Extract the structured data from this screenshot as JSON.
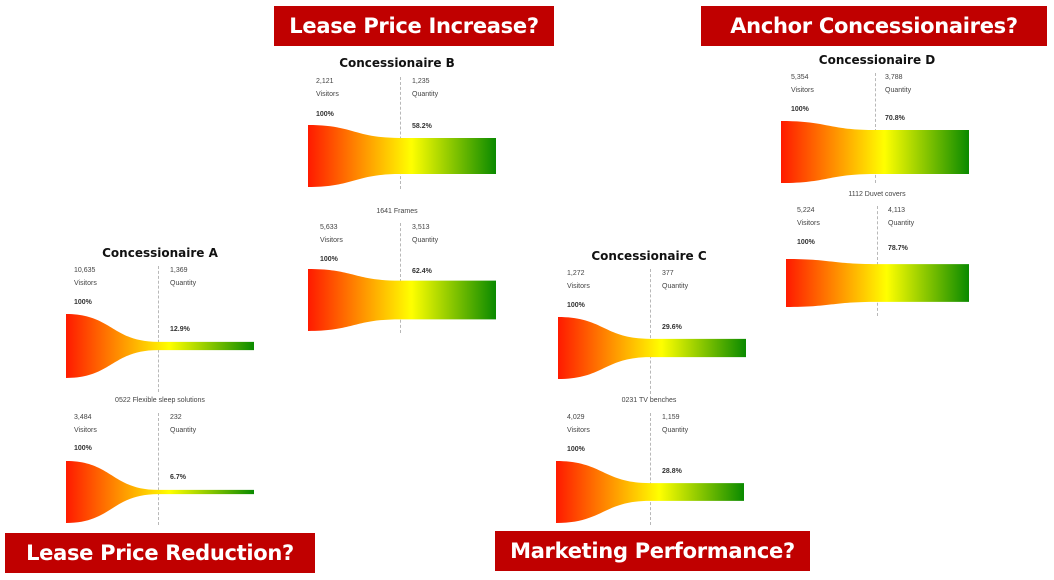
{
  "banners": {
    "lease_increase": "Lease Price Increase?",
    "anchor": "Anchor Concessionaires?",
    "lease_reduction": "Lease Price Reduction?",
    "marketing": "Marketing Performance?"
  },
  "colors": {
    "banner": "#c00000",
    "funnel_start": "#ff1a00",
    "funnel_mid": "#ffff00",
    "funnel_end": "#0a8a00"
  },
  "chart_data": [
    {
      "type": "funnel",
      "title": "Concessionaire A",
      "caption": "",
      "stages": [
        {
          "name": "Visitors",
          "count": "10,635",
          "share": "100%"
        },
        {
          "name": "Quantity",
          "count": "1,369",
          "share": "12.9%"
        }
      ],
      "conversion": 0.129
    },
    {
      "type": "funnel",
      "title": "",
      "caption": "0522 Flexible sleep solutions",
      "stages": [
        {
          "name": "Visitors",
          "count": "3,484",
          "share": "100%"
        },
        {
          "name": "Quantity",
          "count": "232",
          "share": "6.7%"
        }
      ],
      "conversion": 0.067
    },
    {
      "type": "funnel",
      "title": "Concessionaire B",
      "caption": "",
      "stages": [
        {
          "name": "Visitors",
          "count": "2,121",
          "share": "100%"
        },
        {
          "name": "Quantity",
          "count": "1,235",
          "share": "58.2%"
        }
      ],
      "conversion": 0.582
    },
    {
      "type": "funnel",
      "title": "",
      "caption": "1641 Frames",
      "stages": [
        {
          "name": "Visitors",
          "count": "5,633",
          "share": "100%"
        },
        {
          "name": "Quantity",
          "count": "3,513",
          "share": "62.4%"
        }
      ],
      "conversion": 0.624
    },
    {
      "type": "funnel",
      "title": "Concessionaire C",
      "caption": "",
      "stages": [
        {
          "name": "Visitors",
          "count": "1,272",
          "share": "100%"
        },
        {
          "name": "Quantity",
          "count": "377",
          "share": "29.6%"
        }
      ],
      "conversion": 0.296
    },
    {
      "type": "funnel",
      "title": "",
      "caption": "0231 TV benches",
      "stages": [
        {
          "name": "Visitors",
          "count": "4,029",
          "share": "100%"
        },
        {
          "name": "Quantity",
          "count": "1,159",
          "share": "28.8%"
        }
      ],
      "conversion": 0.288
    },
    {
      "type": "funnel",
      "title": "Concessionaire D",
      "caption": "",
      "stages": [
        {
          "name": "Visitors",
          "count": "5,354",
          "share": "100%"
        },
        {
          "name": "Quantity",
          "count": "3,788",
          "share": "70.8%"
        }
      ],
      "conversion": 0.708
    },
    {
      "type": "funnel",
      "title": "",
      "caption": "1112 Duvet covers",
      "stages": [
        {
          "name": "Visitors",
          "count": "5,224",
          "share": "100%"
        },
        {
          "name": "Quantity",
          "count": "4,113",
          "share": "78.7%"
        }
      ],
      "conversion": 0.787
    }
  ]
}
